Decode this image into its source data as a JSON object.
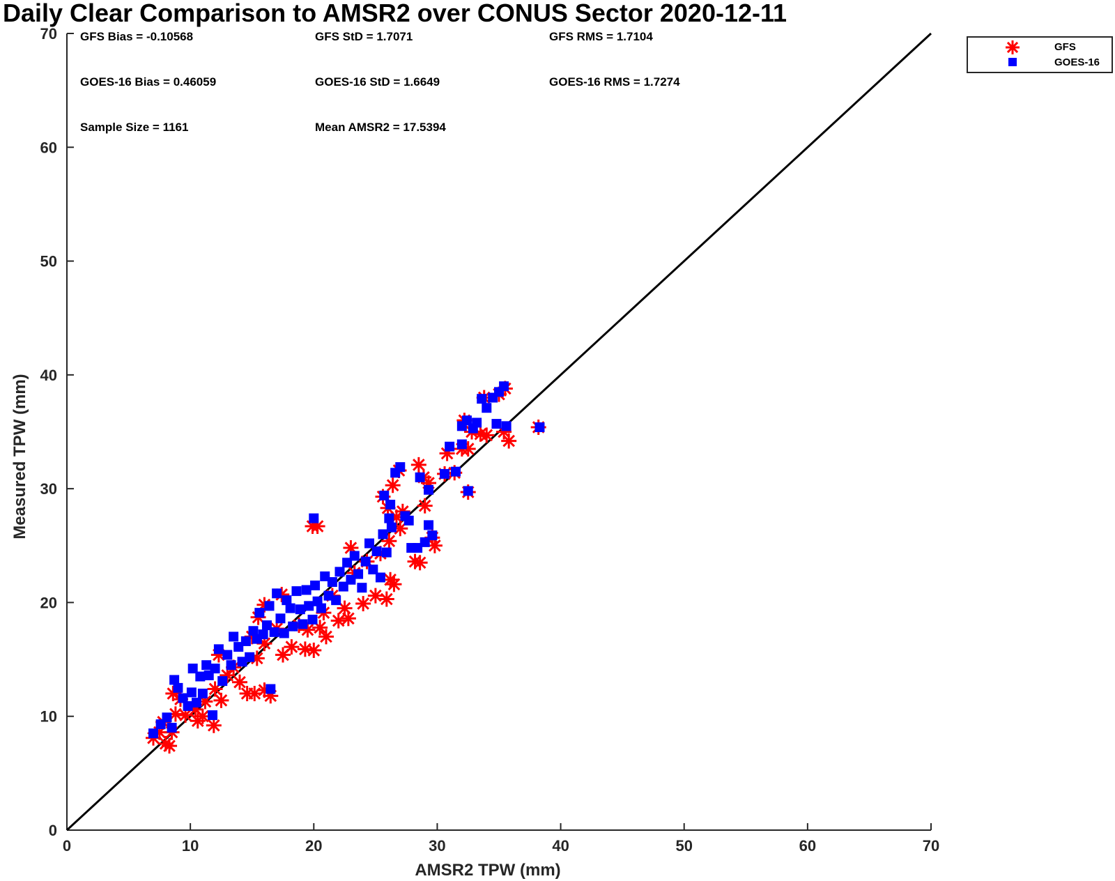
{
  "chart_data": {
    "type": "scatter",
    "title": "Daily Clear Comparison to AMSR2 over CONUS Sector 2020-12-11",
    "xlabel": "AMSR2 TPW (mm)",
    "ylabel": "Measured TPW (mm)",
    "xlim": [
      0,
      70
    ],
    "ylim": [
      0,
      70
    ],
    "xticks": [
      "0",
      "10",
      "20",
      "30",
      "40",
      "50",
      "60",
      "70"
    ],
    "yticks": [
      "0",
      "10",
      "20",
      "30",
      "40",
      "50",
      "60",
      "70"
    ],
    "grid": false,
    "legend_position": "outside-top-right",
    "reference_line": {
      "from": [
        0,
        0
      ],
      "to": [
        70,
        70
      ]
    },
    "annotations": [
      "GFS Bias = -0.10568",
      "GFS StD = 1.7071",
      "GFS RMS = 1.7104",
      "GOES-16 Bias = 0.46059",
      "GOES-16 StD = 1.6649",
      "GOES-16 RMS = 1.7274",
      "Sample Size = 1161",
      "Mean AMSR2 = 17.5394"
    ],
    "series": [
      {
        "name": "GFS",
        "marker": "asterisk",
        "color": "#ff0000",
        "points": [
          [
            7,
            8.1
          ],
          [
            7.5,
            8.6
          ],
          [
            8,
            7.6
          ],
          [
            8.3,
            7.4
          ],
          [
            8.5,
            8.6
          ],
          [
            7.8,
            9.5
          ],
          [
            8.8,
            10.2
          ],
          [
            9.2,
            11.5
          ],
          [
            8.6,
            12.0
          ],
          [
            9.6,
            10.1
          ],
          [
            10.4,
            10.6
          ],
          [
            10.6,
            9.6
          ],
          [
            11.0,
            10.0
          ],
          [
            11.9,
            9.2
          ],
          [
            11.2,
            11.3
          ],
          [
            12.0,
            12.4
          ],
          [
            12.5,
            11.4
          ],
          [
            13.0,
            13.6
          ],
          [
            12.3,
            15.4
          ],
          [
            13.5,
            14.3
          ],
          [
            14.0,
            13.0
          ],
          [
            14.6,
            12.0
          ],
          [
            15.2,
            12.0
          ],
          [
            16.0,
            12.3
          ],
          [
            16.5,
            11.8
          ],
          [
            15.4,
            15.1
          ],
          [
            16.0,
            16.4
          ],
          [
            15.0,
            17.0
          ],
          [
            15.5,
            18.7
          ],
          [
            16.0,
            19.8
          ],
          [
            17.0,
            17.7
          ],
          [
            17.5,
            15.4
          ],
          [
            17.4,
            20.7
          ],
          [
            18.2,
            16.1
          ],
          [
            18.8,
            18.0
          ],
          [
            19.3,
            15.9
          ],
          [
            20.0,
            15.8
          ],
          [
            19.5,
            17.6
          ],
          [
            20.5,
            17.8
          ],
          [
            21.0,
            17.0
          ],
          [
            20.8,
            19.1
          ],
          [
            21.5,
            20.6
          ],
          [
            22.0,
            18.4
          ],
          [
            22.5,
            19.5
          ],
          [
            22.8,
            18.6
          ],
          [
            23.3,
            22.6
          ],
          [
            23.0,
            24.8
          ],
          [
            24.0,
            19.9
          ],
          [
            24.3,
            23.6
          ],
          [
            25.0,
            20.6
          ],
          [
            25.4,
            24.3
          ],
          [
            25.9,
            20.3
          ],
          [
            26.2,
            22.0
          ],
          [
            26.5,
            21.6
          ],
          [
            26.1,
            25.4
          ],
          [
            27.0,
            26.5
          ],
          [
            26.7,
            27.5
          ],
          [
            27.2,
            28.0
          ],
          [
            26.0,
            28.3
          ],
          [
            25.6,
            29.3
          ],
          [
            26.4,
            30.3
          ],
          [
            26.9,
            31.6
          ],
          [
            28.2,
            23.6
          ],
          [
            28.6,
            23.5
          ],
          [
            28.5,
            32.1
          ],
          [
            28.9,
            31.0
          ],
          [
            29.3,
            30.5
          ],
          [
            29.0,
            28.5
          ],
          [
            29.6,
            25.7
          ],
          [
            29.8,
            25.0
          ],
          [
            30.6,
            31.3
          ],
          [
            30.8,
            33.1
          ],
          [
            31.4,
            31.4
          ],
          [
            32.0,
            33.5
          ],
          [
            32.5,
            33.5
          ],
          [
            32.5,
            29.7
          ],
          [
            32.2,
            36.0
          ],
          [
            32.8,
            35.0
          ],
          [
            33.5,
            34.8
          ],
          [
            34.0,
            34.7
          ],
          [
            33.8,
            38.0
          ],
          [
            35.0,
            38.3
          ],
          [
            35.5,
            38.8
          ],
          [
            35.4,
            35.0
          ],
          [
            35.8,
            34.2
          ],
          [
            38.2,
            35.4
          ],
          [
            19.9,
            26.7
          ],
          [
            20.3,
            26.7
          ]
        ]
      },
      {
        "name": "GOES-16",
        "marker": "square",
        "color": "#0000ff",
        "points": [
          [
            7.0,
            8.5
          ],
          [
            7.6,
            9.3
          ],
          [
            8.1,
            9.9
          ],
          [
            8.5,
            9.0
          ],
          [
            8.7,
            13.2
          ],
          [
            9.0,
            12.5
          ],
          [
            9.4,
            11.6
          ],
          [
            9.8,
            10.9
          ],
          [
            10.1,
            12.1
          ],
          [
            10.2,
            14.2
          ],
          [
            10.5,
            11.2
          ],
          [
            10.8,
            13.5
          ],
          [
            11.0,
            12.0
          ],
          [
            11.5,
            13.6
          ],
          [
            11.8,
            10.1
          ],
          [
            11.3,
            14.5
          ],
          [
            12.0,
            14.2
          ],
          [
            12.3,
            15.9
          ],
          [
            12.6,
            13.1
          ],
          [
            13.0,
            15.4
          ],
          [
            13.3,
            14.5
          ],
          [
            13.5,
            17.0
          ],
          [
            13.9,
            16.1
          ],
          [
            14.2,
            14.8
          ],
          [
            14.5,
            16.6
          ],
          [
            14.8,
            15.2
          ],
          [
            15.1,
            17.5
          ],
          [
            15.4,
            16.8
          ],
          [
            15.6,
            19.1
          ],
          [
            15.9,
            17.2
          ],
          [
            16.2,
            18.0
          ],
          [
            16.4,
            19.7
          ],
          [
            16.5,
            12.4
          ],
          [
            16.8,
            17.4
          ],
          [
            17.0,
            20.8
          ],
          [
            17.3,
            18.6
          ],
          [
            17.6,
            17.3
          ],
          [
            17.8,
            20.2
          ],
          [
            18.1,
            19.5
          ],
          [
            18.3,
            17.9
          ],
          [
            18.6,
            21.0
          ],
          [
            18.9,
            19.4
          ],
          [
            19.1,
            18.1
          ],
          [
            19.4,
            21.1
          ],
          [
            19.6,
            19.7
          ],
          [
            19.9,
            18.5
          ],
          [
            20.1,
            21.5
          ],
          [
            20.3,
            20.1
          ],
          [
            20.6,
            19.5
          ],
          [
            20.9,
            22.3
          ],
          [
            21.2,
            20.6
          ],
          [
            21.5,
            21.8
          ],
          [
            21.8,
            20.2
          ],
          [
            22.1,
            22.7
          ],
          [
            22.4,
            21.4
          ],
          [
            22.7,
            23.5
          ],
          [
            23.0,
            22.0
          ],
          [
            23.3,
            24.1
          ],
          [
            23.6,
            22.5
          ],
          [
            23.9,
            21.3
          ],
          [
            24.2,
            23.6
          ],
          [
            24.5,
            25.2
          ],
          [
            24.8,
            22.9
          ],
          [
            25.1,
            24.5
          ],
          [
            25.4,
            22.2
          ],
          [
            25.6,
            26.0
          ],
          [
            25.9,
            24.4
          ],
          [
            26.1,
            27.4
          ],
          [
            26.3,
            26.6
          ],
          [
            26.6,
            31.4
          ],
          [
            26.2,
            28.6
          ],
          [
            25.7,
            29.4
          ],
          [
            27.0,
            31.9
          ],
          [
            27.4,
            27.6
          ],
          [
            27.9,
            24.8
          ],
          [
            28.4,
            24.8
          ],
          [
            28.6,
            31.0
          ],
          [
            29.0,
            25.3
          ],
          [
            29.3,
            26.8
          ],
          [
            29.6,
            25.9
          ],
          [
            29.3,
            29.9
          ],
          [
            27.7,
            27.2
          ],
          [
            20.0,
            27.4
          ],
          [
            30.6,
            31.3
          ],
          [
            31.0,
            33.7
          ],
          [
            31.5,
            31.5
          ],
          [
            32.0,
            33.9
          ],
          [
            32.0,
            35.5
          ],
          [
            32.4,
            36.0
          ],
          [
            32.5,
            29.8
          ],
          [
            32.9,
            35.3
          ],
          [
            33.2,
            35.8
          ],
          [
            33.6,
            37.9
          ],
          [
            34.0,
            37.1
          ],
          [
            34.5,
            38.0
          ],
          [
            35.0,
            38.5
          ],
          [
            35.4,
            39.0
          ],
          [
            35.6,
            35.5
          ],
          [
            34.8,
            35.7
          ],
          [
            38.3,
            35.4
          ]
        ]
      }
    ]
  }
}
